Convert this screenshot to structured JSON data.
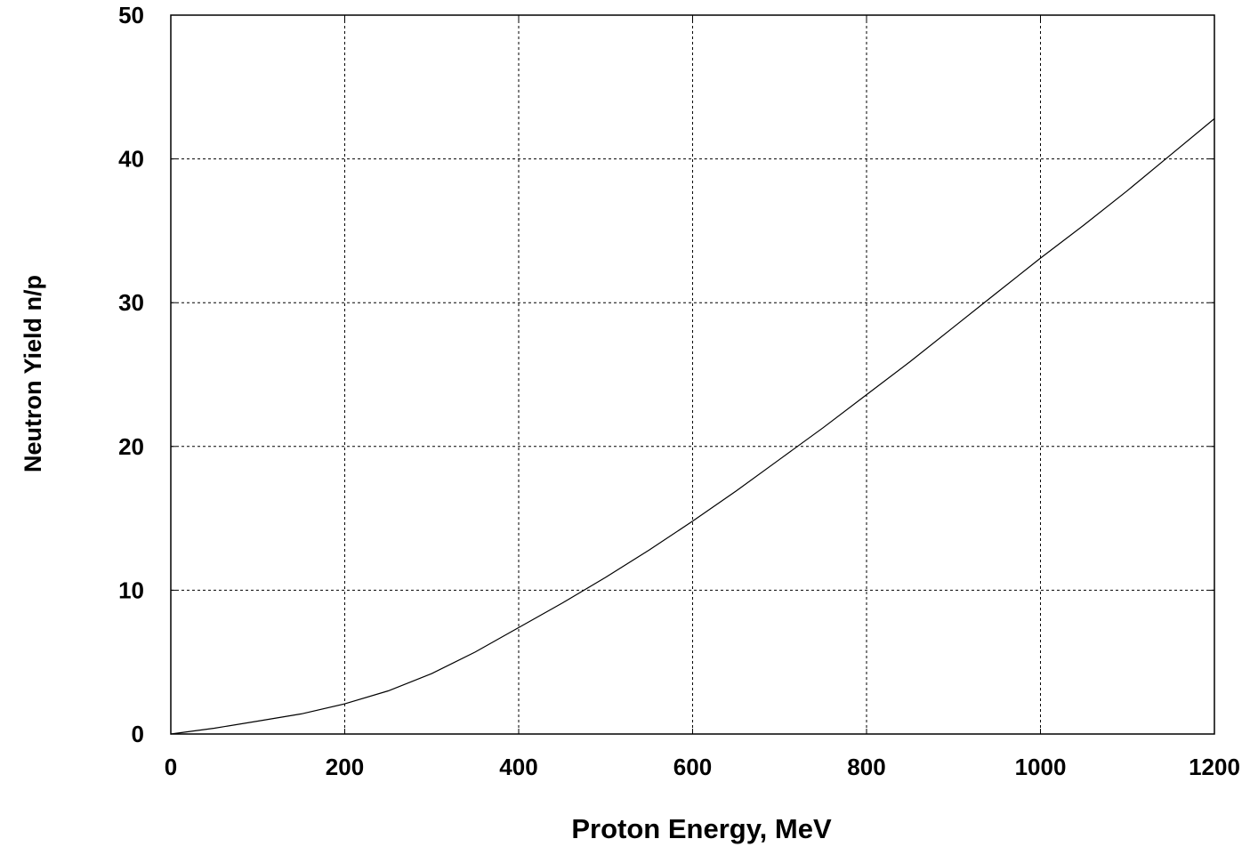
{
  "chart_data": {
    "type": "line",
    "title": "",
    "xlabel": "Proton Energy, MeV",
    "ylabel": "Neutron Yield n/p",
    "xlim": [
      0,
      1200
    ],
    "ylim": [
      0,
      50
    ],
    "x_ticks": [
      0,
      200,
      400,
      600,
      800,
      1000,
      1200
    ],
    "y_ticks": [
      0,
      10,
      20,
      30,
      40,
      50
    ],
    "grid": true,
    "legend": "none",
    "colors": {
      "line": "#000000",
      "grid": "#000000",
      "background": "#ffffff"
    },
    "series": [
      {
        "x": [
          0,
          50,
          100,
          150,
          200,
          250,
          300,
          350,
          400,
          450,
          500,
          550,
          600,
          650,
          700,
          750,
          800,
          850,
          900,
          950,
          1000,
          1050,
          1100,
          1150,
          1200
        ],
        "y": [
          0,
          0.4,
          0.9,
          1.4,
          2.1,
          3.0,
          4.2,
          5.7,
          7.4,
          9.1,
          10.9,
          12.8,
          14.8,
          16.9,
          19.1,
          21.3,
          23.6,
          25.9,
          28.3,
          30.7,
          33.1,
          35.4,
          37.8,
          40.3,
          42.8
        ]
      }
    ]
  }
}
